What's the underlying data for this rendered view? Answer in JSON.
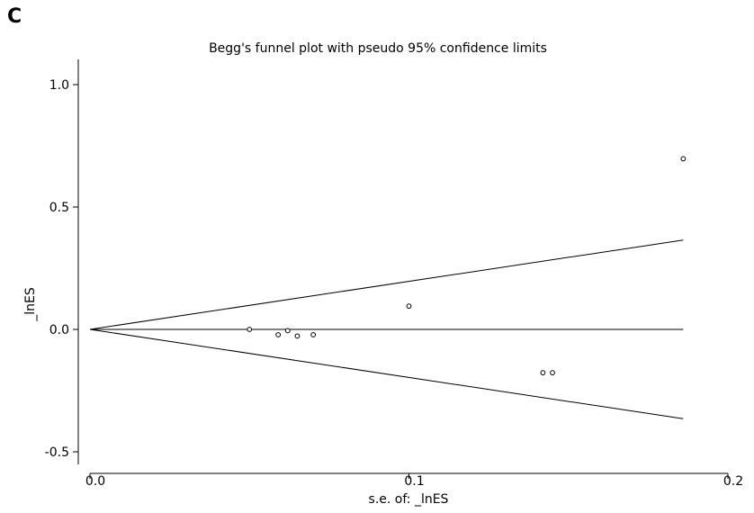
{
  "panel_label": "C",
  "chart_data": {
    "type": "scatter",
    "title": "Begg's funnel plot with pseudo 95% confidence limits",
    "xlabel": "s.e. of: _lnES",
    "ylabel": "_lnES",
    "xlim": [
      0.0,
      0.2
    ],
    "ylim": [
      -0.5,
      1.0
    ],
    "x_ticks": [
      0.0,
      0.1,
      0.2
    ],
    "x_tick_labels": [
      "0.0",
      "0.1",
      "0.2"
    ],
    "y_ticks": [
      -0.5,
      0.0,
      0.5,
      1.0
    ],
    "y_tick_labels": [
      "-0.5",
      "0.0",
      "0.5",
      "1.0"
    ],
    "grid": false,
    "points": [
      {
        "x": 0.05,
        "y": 0.0
      },
      {
        "x": 0.059,
        "y": -0.022
      },
      {
        "x": 0.062,
        "y": -0.005
      },
      {
        "x": 0.065,
        "y": -0.027
      },
      {
        "x": 0.07,
        "y": -0.022
      },
      {
        "x": 0.1,
        "y": 0.095
      },
      {
        "x": 0.142,
        "y": -0.177
      },
      {
        "x": 0.145,
        "y": -0.177
      },
      {
        "x": 0.186,
        "y": 0.697
      }
    ],
    "lines": [
      {
        "name": "upper pseudo 95% limit",
        "x": [
          0.0,
          0.186
        ],
        "y": [
          0.0,
          0.365
        ]
      },
      {
        "name": "pooled estimate",
        "x": [
          0.0,
          0.186
        ],
        "y": [
          0.0,
          0.0
        ]
      },
      {
        "name": "lower pseudo 95% limit",
        "x": [
          0.0,
          0.186
        ],
        "y": [
          0.0,
          -0.365
        ]
      }
    ]
  }
}
